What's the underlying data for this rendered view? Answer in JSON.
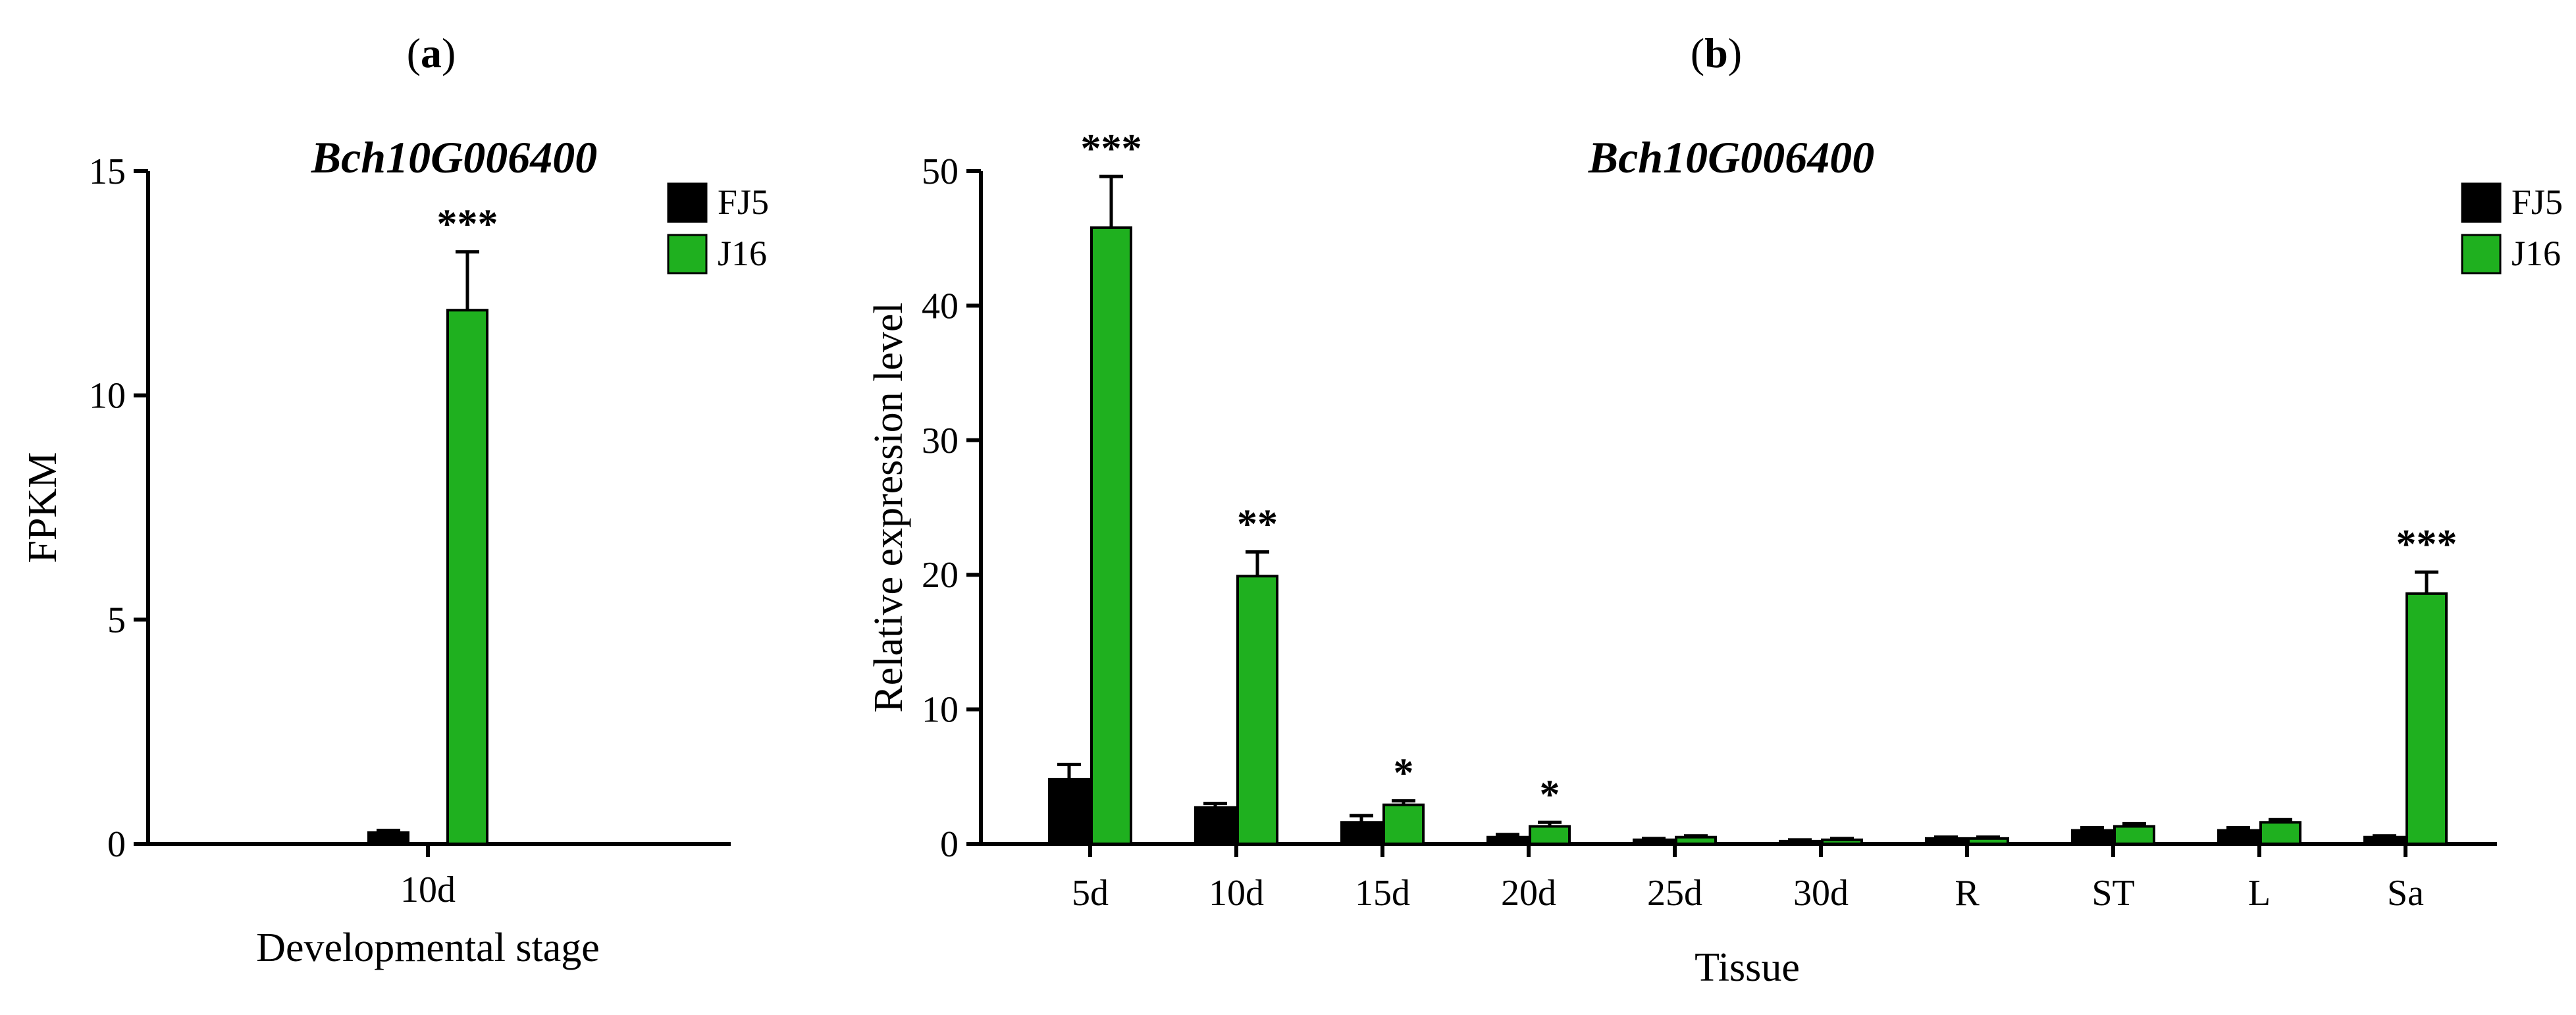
{
  "panels": [
    {
      "panel_label_open": "(",
      "panel_label_letter": "a",
      "panel_label_close": ")"
    },
    {
      "panel_label_open": "(",
      "panel_label_letter": "b",
      "panel_label_close": ")"
    }
  ],
  "colors": {
    "FJ5": "#000000",
    "J16": "#1fb01f"
  },
  "chart_data": [
    {
      "type": "bar",
      "title": "Bch10G006400",
      "xlabel": "Developmental stage",
      "ylabel": "FPKM",
      "ylim": [
        0,
        15
      ],
      "yticks": [
        0,
        5,
        10,
        15
      ],
      "categories": [
        "10d"
      ],
      "legend": [
        "FJ5",
        "J16"
      ],
      "legend_position": "top-right",
      "series": [
        {
          "name": "FJ5",
          "values": [
            0.25
          ],
          "errors": [
            0.05
          ]
        },
        {
          "name": "J16",
          "values": [
            11.9
          ],
          "errors": [
            1.3
          ]
        }
      ],
      "significance": [
        "***"
      ]
    },
    {
      "type": "bar",
      "title": "Bch10G006400",
      "xlabel": "Tissue",
      "ylabel": "Relative expression level",
      "ylim": [
        0,
        50
      ],
      "yticks": [
        0,
        10,
        20,
        30,
        40,
        50
      ],
      "categories": [
        "5d",
        "10d",
        "15d",
        "20d",
        "25d",
        "30d",
        "R",
        "ST",
        "L",
        "Sa"
      ],
      "legend": [
        "FJ5",
        "J16"
      ],
      "legend_position": "top-right",
      "series": [
        {
          "name": "FJ5",
          "values": [
            4.8,
            2.7,
            1.6,
            0.5,
            0.3,
            0.2,
            0.4,
            1.0,
            1.0,
            0.5
          ],
          "errors": [
            1.1,
            0.3,
            0.5,
            0.2,
            0.1,
            0.1,
            0.1,
            0.2,
            0.2,
            0.1
          ]
        },
        {
          "name": "J16",
          "values": [
            45.8,
            19.9,
            2.9,
            1.3,
            0.5,
            0.3,
            0.4,
            1.3,
            1.6,
            18.6
          ],
          "errors": [
            3.8,
            1.8,
            0.3,
            0.3,
            0.1,
            0.1,
            0.1,
            0.2,
            0.2,
            1.6
          ]
        }
      ],
      "significance": [
        "***",
        "**",
        "*",
        "*",
        "",
        "",
        "",
        "",
        "",
        "***"
      ]
    }
  ]
}
